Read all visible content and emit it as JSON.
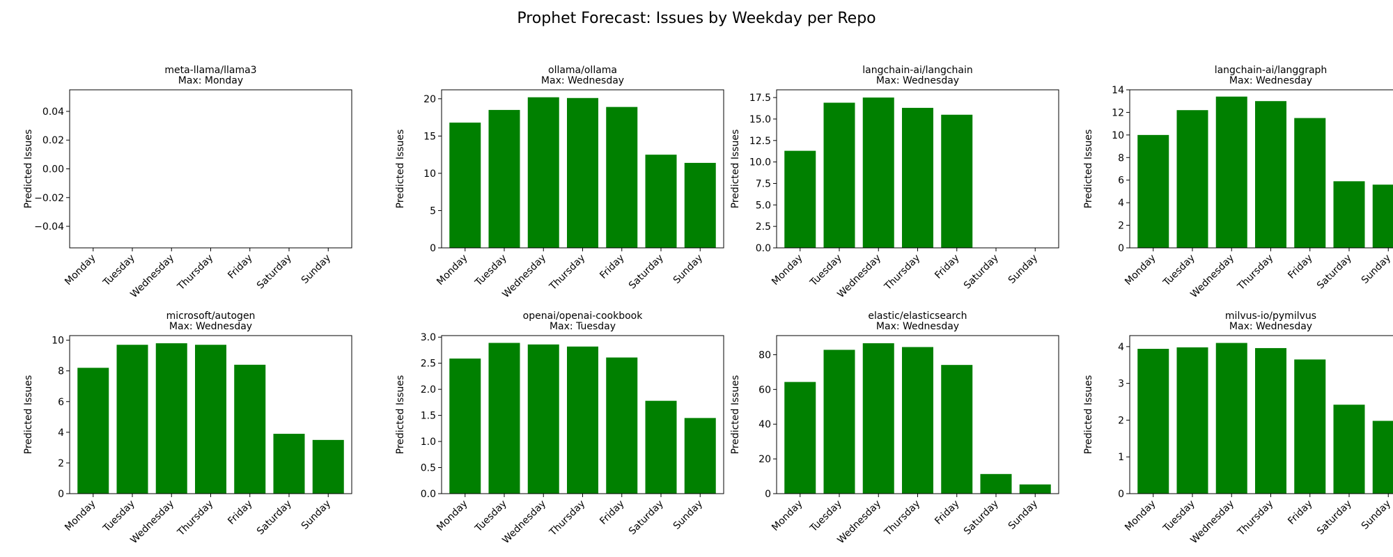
{
  "figure": {
    "title": "Prophet Forecast: Issues by Weekday per Repo",
    "bar_color": "#008000"
  },
  "chart_data": [
    {
      "type": "bar",
      "title": "meta-llama/llama3",
      "subtitle": "Max: Monday",
      "ylabel": "Predicted Issues",
      "categories": [
        "Monday",
        "Tuesday",
        "Wednesday",
        "Thursday",
        "Friday",
        "Saturday",
        "Sunday"
      ],
      "values": [
        0,
        0,
        0,
        0,
        0,
        0,
        0
      ],
      "ylim": [
        -0.055,
        0.055
      ],
      "yticks": [
        -0.04,
        -0.02,
        0.0,
        0.02,
        0.04
      ],
      "ytick_labels": [
        "−0.04",
        "−0.02",
        "0.00",
        "0.02",
        "0.04"
      ],
      "grid": false
    },
    {
      "type": "bar",
      "title": "ollama/ollama",
      "subtitle": "Max: Wednesday",
      "ylabel": "Predicted Issues",
      "categories": [
        "Monday",
        "Tuesday",
        "Wednesday",
        "Thursday",
        "Friday",
        "Saturday",
        "Sunday"
      ],
      "values": [
        16.8,
        18.5,
        20.2,
        20.1,
        18.9,
        12.5,
        11.4
      ],
      "ylim": [
        0,
        21.2
      ],
      "yticks": [
        0,
        5,
        10,
        15,
        20
      ],
      "ytick_labels": [
        "0",
        "5",
        "10",
        "15",
        "20"
      ],
      "grid": false
    },
    {
      "type": "bar",
      "title": "langchain-ai/langchain",
      "subtitle": "Max: Wednesday",
      "ylabel": "Predicted Issues",
      "categories": [
        "Monday",
        "Tuesday",
        "Wednesday",
        "Thursday",
        "Friday",
        "Saturday",
        "Sunday"
      ],
      "values": [
        11.3,
        16.9,
        17.5,
        16.3,
        15.5,
        0,
        0
      ],
      "ylim": [
        0,
        18.4
      ],
      "yticks": [
        0,
        2.5,
        5,
        7.5,
        10,
        12.5,
        15,
        17.5
      ],
      "ytick_labels": [
        "0.0",
        "2.5",
        "5.0",
        "7.5",
        "10.0",
        "12.5",
        "15.0",
        "17.5"
      ],
      "grid": false
    },
    {
      "type": "bar",
      "title": "langchain-ai/langgraph",
      "subtitle": "Max: Wednesday",
      "ylabel": "Predicted Issues",
      "categories": [
        "Monday",
        "Tuesday",
        "Wednesday",
        "Thursday",
        "Friday",
        "Saturday",
        "Sunday"
      ],
      "values": [
        10.0,
        12.2,
        13.4,
        13.0,
        11.5,
        5.9,
        5.6
      ],
      "ylim": [
        0,
        14
      ],
      "yticks": [
        0,
        2,
        4,
        6,
        8,
        10,
        12,
        14
      ],
      "ytick_labels": [
        "0",
        "2",
        "4",
        "6",
        "8",
        "10",
        "12",
        "14"
      ],
      "grid": false
    },
    {
      "type": "bar",
      "title": "microsoft/autogen",
      "subtitle": "Max: Wednesday",
      "ylabel": "Predicted Issues",
      "categories": [
        "Monday",
        "Tuesday",
        "Wednesday",
        "Thursday",
        "Friday",
        "Saturday",
        "Sunday"
      ],
      "values": [
        8.2,
        9.7,
        9.8,
        9.7,
        8.4,
        3.9,
        3.5
      ],
      "ylim": [
        0,
        10.3
      ],
      "yticks": [
        0,
        2,
        4,
        6,
        8,
        10
      ],
      "ytick_labels": [
        "0",
        "2",
        "4",
        "6",
        "8",
        "10"
      ],
      "grid": false
    },
    {
      "type": "bar",
      "title": "openai/openai-cookbook",
      "subtitle": "Max: Tuesday",
      "ylabel": "Predicted Issues",
      "categories": [
        "Monday",
        "Tuesday",
        "Wednesday",
        "Thursday",
        "Friday",
        "Saturday",
        "Sunday"
      ],
      "values": [
        2.59,
        2.89,
        2.86,
        2.82,
        2.61,
        1.78,
        1.45
      ],
      "ylim": [
        0,
        3.03
      ],
      "yticks": [
        0,
        0.5,
        1,
        1.5,
        2,
        2.5,
        3
      ],
      "ytick_labels": [
        "0.0",
        "0.5",
        "1.0",
        "1.5",
        "2.0",
        "2.5",
        "3.0"
      ],
      "grid": false
    },
    {
      "type": "bar",
      "title": "elastic/elasticsearch",
      "subtitle": "Max: Wednesday",
      "ylabel": "Predicted Issues",
      "categories": [
        "Monday",
        "Tuesday",
        "Wednesday",
        "Thursday",
        "Friday",
        "Saturday",
        "Sunday"
      ],
      "values": [
        64.3,
        82.8,
        86.6,
        84.4,
        74.1,
        11.3,
        5.3
      ],
      "ylim": [
        0,
        91
      ],
      "yticks": [
        0,
        20,
        40,
        60,
        80
      ],
      "ytick_labels": [
        "0",
        "20",
        "40",
        "60",
        "80"
      ],
      "grid": false
    },
    {
      "type": "bar",
      "title": "milvus-io/pymilvus",
      "subtitle": "Max: Wednesday",
      "ylabel": "Predicted Issues",
      "categories": [
        "Monday",
        "Tuesday",
        "Wednesday",
        "Thursday",
        "Friday",
        "Saturday",
        "Sunday"
      ],
      "values": [
        3.94,
        3.98,
        4.1,
        3.96,
        3.65,
        2.42,
        1.98
      ],
      "ylim": [
        0,
        4.3
      ],
      "yticks": [
        0,
        1,
        2,
        3,
        4
      ],
      "ytick_labels": [
        "0",
        "1",
        "2",
        "3",
        "4"
      ],
      "grid": false
    }
  ]
}
